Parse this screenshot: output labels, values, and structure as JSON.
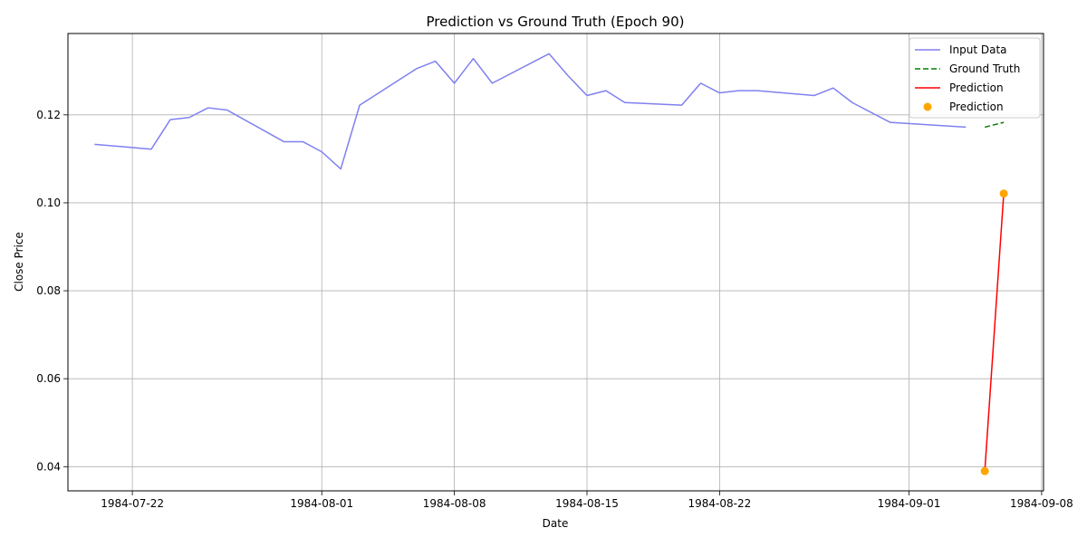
{
  "chart_data": {
    "type": "line",
    "title": "Prediction vs Ground Truth (Epoch 90)",
    "xlabel": "Date",
    "ylabel": "Close Price",
    "x_scale": "date",
    "xlim": [
      "1984-07-18",
      "1984-09-08"
    ],
    "ylim": [
      0.0345,
      0.1385
    ],
    "x_ticks": [
      "1984-07-22",
      "1984-08-01",
      "1984-08-08",
      "1984-08-15",
      "1984-08-22",
      "1984-09-01",
      "1984-09-08"
    ],
    "y_ticks": [
      0.04,
      0.06,
      0.08,
      0.1,
      0.12
    ],
    "y_tick_labels": [
      "0.04",
      "0.06",
      "0.08",
      "0.10",
      "0.12"
    ],
    "grid": true,
    "legend_position": "top-right",
    "series": [
      {
        "name": "Input Data",
        "kind": "line",
        "style": "solid",
        "color": "#8080f0",
        "points": [
          [
            "1984-07-20",
            0.1133
          ],
          [
            "1984-07-23",
            0.1122
          ],
          [
            "1984-07-24",
            0.1189
          ],
          [
            "1984-07-25",
            0.1194
          ],
          [
            "1984-07-26",
            0.1216
          ],
          [
            "1984-07-27",
            0.1211
          ],
          [
            "1984-07-30",
            0.1139
          ],
          [
            "1984-07-31",
            0.1139
          ],
          [
            "1984-08-01",
            0.1116
          ],
          [
            "1984-08-02",
            0.1077
          ],
          [
            "1984-08-03",
            0.1222
          ],
          [
            "1984-08-06",
            0.1305
          ],
          [
            "1984-08-07",
            0.1322
          ],
          [
            "1984-08-08",
            0.1272
          ],
          [
            "1984-08-09",
            0.1328
          ],
          [
            "1984-08-10",
            0.1272
          ],
          [
            "1984-08-13",
            0.1339
          ],
          [
            "1984-08-14",
            0.1289
          ],
          [
            "1984-08-15",
            0.1244
          ],
          [
            "1984-08-16",
            0.1255
          ],
          [
            "1984-08-17",
            0.1228
          ],
          [
            "1984-08-20",
            0.1222
          ],
          [
            "1984-08-21",
            0.1272
          ],
          [
            "1984-08-22",
            0.125
          ],
          [
            "1984-08-23",
            0.1255
          ],
          [
            "1984-08-24",
            0.1255
          ],
          [
            "1984-08-27",
            0.1244
          ],
          [
            "1984-08-28",
            0.1261
          ],
          [
            "1984-08-29",
            0.1228
          ],
          [
            "1984-08-31",
            0.1183
          ],
          [
            "1984-09-04",
            0.1172
          ]
        ]
      },
      {
        "name": "Ground Truth",
        "kind": "line",
        "style": "dashed",
        "color": "#008000",
        "points": [
          [
            "1984-09-05",
            0.1172
          ],
          [
            "1984-09-06",
            0.1183
          ]
        ]
      },
      {
        "name": "Prediction",
        "kind": "line",
        "style": "solid",
        "color": "#ff0000",
        "points": [
          [
            "1984-09-05",
            0.039
          ],
          [
            "1984-09-06",
            0.1021
          ]
        ]
      },
      {
        "name": "Prediction",
        "kind": "scatter",
        "color": "#ffa500",
        "points": [
          [
            "1984-09-05",
            0.039
          ],
          [
            "1984-09-06",
            0.1021
          ]
        ]
      }
    ]
  }
}
